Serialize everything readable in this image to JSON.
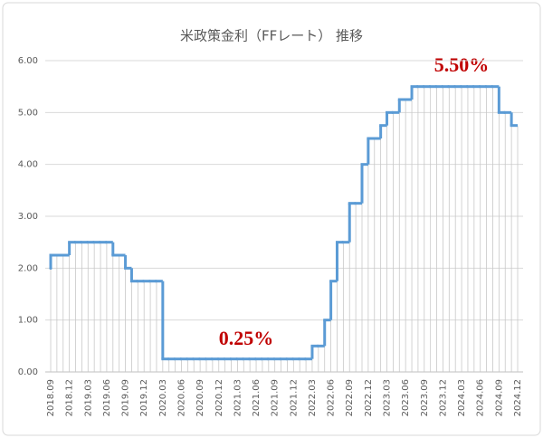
{
  "chart_data": {
    "type": "step",
    "title": "米政策金利（FFレート） 推移",
    "annotations": [
      "5.50%",
      "0.25%"
    ],
    "categories": [
      "2018.09",
      null,
      null,
      "2018.12",
      null,
      null,
      "2019.03",
      null,
      null,
      "2019.06",
      null,
      null,
      "2019.09",
      null,
      null,
      "2019.12",
      null,
      null,
      "2020.03",
      null,
      null,
      "2020.06",
      null,
      null,
      "2020.09",
      null,
      null,
      "2020.12",
      null,
      null,
      "2021.03",
      null,
      null,
      "2021.06",
      null,
      null,
      "2021.09",
      null,
      null,
      "2021.12",
      null,
      null,
      "2022.03",
      null,
      null,
      "2022.06",
      null,
      null,
      "2022.09",
      null,
      null,
      "2022.12",
      null,
      null,
      "2023.03",
      null,
      null,
      "2023.06",
      null,
      null,
      "2023.09",
      null,
      null,
      "2023.12",
      null,
      null,
      "2024.03",
      null,
      null,
      "2024.06",
      null,
      null,
      "2024.09",
      null,
      null,
      "2024.12"
    ],
    "values": [
      2.0,
      2.25,
      2.25,
      2.25,
      2.5,
      2.5,
      2.5,
      2.5,
      2.5,
      2.5,
      2.5,
      2.25,
      2.25,
      2.0,
      1.75,
      1.75,
      1.75,
      1.75,
      1.75,
      0.25,
      0.25,
      0.25,
      0.25,
      0.25,
      0.25,
      0.25,
      0.25,
      0.25,
      0.25,
      0.25,
      0.25,
      0.25,
      0.25,
      0.25,
      0.25,
      0.25,
      0.25,
      0.25,
      0.25,
      0.25,
      0.25,
      0.25,
      0.25,
      0.5,
      0.5,
      1.0,
      1.75,
      2.5,
      2.5,
      3.25,
      3.25,
      4.0,
      4.5,
      4.5,
      4.75,
      5.0,
      5.0,
      5.25,
      5.25,
      5.5,
      5.5,
      5.5,
      5.5,
      5.5,
      5.5,
      5.5,
      5.5,
      5.5,
      5.5,
      5.5,
      5.5,
      5.5,
      5.5,
      5.0,
      5.0,
      4.75
    ],
    "color": "#5b9bd5",
    "ylim": [
      0,
      6
    ],
    "yticks": [
      {
        "value": 0,
        "label": "0.00"
      },
      {
        "value": 1,
        "label": "1.00"
      },
      {
        "value": 2,
        "label": "2.00"
      },
      {
        "value": 3,
        "label": "3.00"
      },
      {
        "value": 4,
        "label": "4.00"
      },
      {
        "value": 5,
        "label": "5.00"
      },
      {
        "value": 6,
        "label": "6.00"
      }
    ],
    "grid": true
  }
}
